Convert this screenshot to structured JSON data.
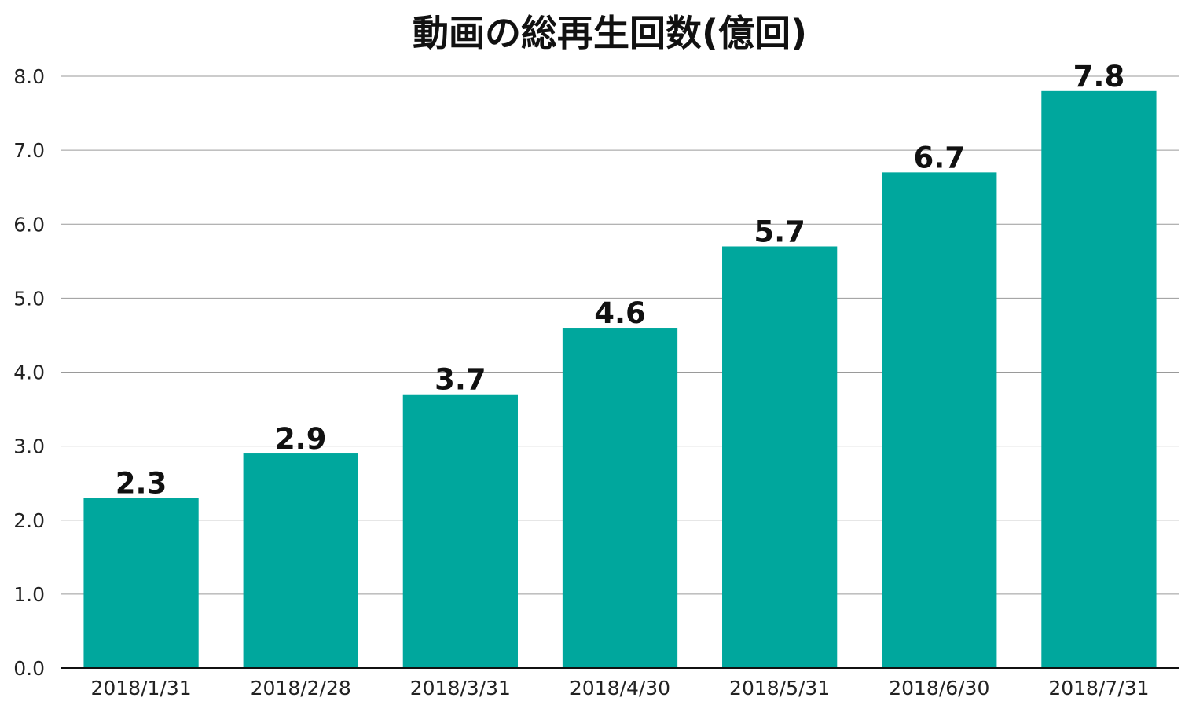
{
  "chart_data": {
    "type": "bar",
    "title": "動画の総再生回数(億回)",
    "categories": [
      "2018/1/31",
      "2018/2/28",
      "2018/3/31",
      "2018/4/30",
      "2018/5/31",
      "2018/6/30",
      "2018/7/31"
    ],
    "values": [
      2.3,
      2.9,
      3.7,
      4.6,
      5.7,
      6.7,
      7.8
    ],
    "data_labels": [
      "2.3",
      "2.9",
      "3.7",
      "4.6",
      "5.7",
      "6.7",
      "7.8"
    ],
    "y_ticks": [
      "0.0",
      "1.0",
      "2.0",
      "3.0",
      "4.0",
      "5.0",
      "6.0",
      "7.0",
      "8.0"
    ],
    "ylim": [
      0,
      8
    ],
    "xlabel": "",
    "ylabel": "",
    "grid": true,
    "legend": "none",
    "bar_color": "#00a79d"
  }
}
